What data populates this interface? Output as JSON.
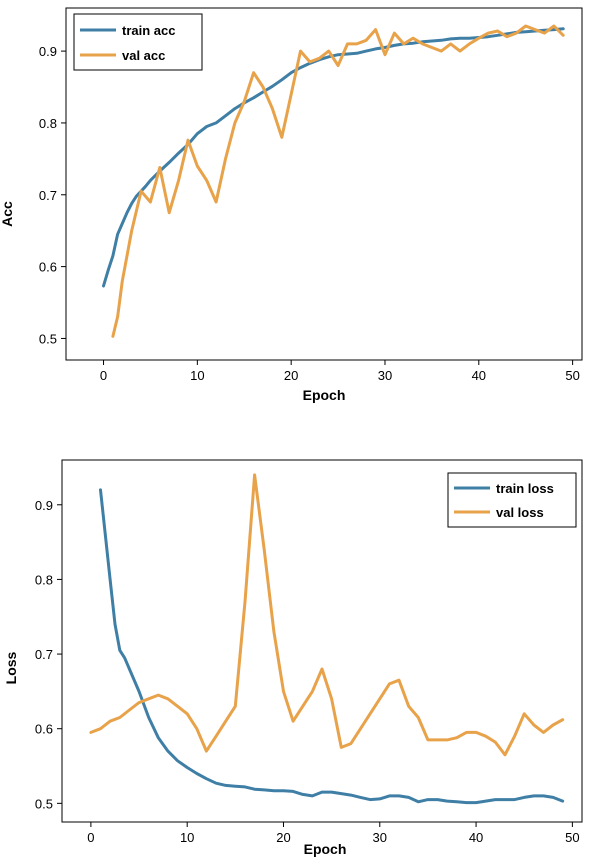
{
  "chart_data": [
    {
      "type": "line",
      "xlabel": "Epoch",
      "ylabel": "Acc",
      "xlim": [
        -4,
        51
      ],
      "ylim": [
        0.47,
        0.96
      ],
      "xticks": [
        0,
        10,
        20,
        30,
        40,
        50
      ],
      "yticks": [
        0.5,
        0.6,
        0.7,
        0.8,
        0.9
      ],
      "grid": false,
      "legend": "top-left",
      "series": [
        {
          "name": "train acc",
          "color": "#3f7fa6",
          "x": [
            0,
            0.5,
            1,
            1.5,
            2,
            2.5,
            3,
            3.5,
            4,
            4.5,
            5,
            6,
            7,
            8,
            9,
            10,
            11,
            12,
            13,
            14,
            15,
            16,
            17,
            18,
            19,
            20,
            21,
            22,
            23,
            24,
            25,
            26,
            27,
            28,
            29,
            30,
            31,
            32,
            33,
            34,
            35,
            36,
            37,
            38,
            39,
            40,
            41,
            42,
            43,
            44,
            45,
            46,
            47,
            48,
            49
          ],
          "y": [
            0.573,
            0.595,
            0.615,
            0.645,
            0.66,
            0.675,
            0.688,
            0.698,
            0.705,
            0.712,
            0.72,
            0.733,
            0.745,
            0.758,
            0.77,
            0.785,
            0.795,
            0.8,
            0.81,
            0.82,
            0.828,
            0.835,
            0.843,
            0.851,
            0.86,
            0.87,
            0.877,
            0.883,
            0.888,
            0.892,
            0.895,
            0.896,
            0.897,
            0.9,
            0.903,
            0.905,
            0.908,
            0.91,
            0.911,
            0.913,
            0.914,
            0.915,
            0.917,
            0.918,
            0.918,
            0.919,
            0.92,
            0.922,
            0.924,
            0.926,
            0.927,
            0.928,
            0.929,
            0.93,
            0.931
          ]
        },
        {
          "name": "val acc",
          "color": "#e8a24a",
          "x": [
            1,
            1.5,
            2,
            3,
            4,
            5,
            6,
            7,
            8,
            9,
            10,
            11,
            12,
            13,
            14,
            15,
            16,
            17,
            18,
            19,
            20,
            21,
            22,
            23,
            24,
            25,
            26,
            27,
            28,
            29,
            30,
            31,
            32,
            33,
            34,
            35,
            36,
            37,
            38,
            39,
            40,
            41,
            42,
            43,
            44,
            45,
            46,
            47,
            48,
            49
          ],
          "y": [
            0.503,
            0.53,
            0.58,
            0.65,
            0.705,
            0.69,
            0.738,
            0.675,
            0.72,
            0.776,
            0.74,
            0.72,
            0.69,
            0.75,
            0.8,
            0.83,
            0.87,
            0.85,
            0.82,
            0.78,
            0.84,
            0.9,
            0.885,
            0.89,
            0.9,
            0.88,
            0.91,
            0.91,
            0.915,
            0.93,
            0.895,
            0.925,
            0.91,
            0.918,
            0.91,
            0.905,
            0.9,
            0.91,
            0.9,
            0.91,
            0.918,
            0.925,
            0.928,
            0.92,
            0.925,
            0.935,
            0.93,
            0.925,
            0.935,
            0.922
          ]
        }
      ]
    },
    {
      "type": "line",
      "xlabel": "Epoch",
      "ylabel": "Loss",
      "xlim": [
        -3,
        51
      ],
      "ylim": [
        0.475,
        0.96
      ],
      "xticks": [
        0,
        10,
        20,
        30,
        40,
        50
      ],
      "yticks": [
        0.5,
        0.6,
        0.7,
        0.8,
        0.9
      ],
      "grid": false,
      "legend": "top-right",
      "series": [
        {
          "name": "train loss",
          "color": "#3f7fa6",
          "x": [
            1,
            1.5,
            2,
            2.5,
            3,
            3.5,
            4,
            5,
            6,
            7,
            8,
            9,
            10,
            11,
            12,
            13,
            14,
            15,
            16,
            17,
            18,
            19,
            20,
            21,
            22,
            23,
            24,
            25,
            26,
            27,
            28,
            29,
            30,
            31,
            32,
            33,
            34,
            35,
            36,
            37,
            38,
            39,
            40,
            41,
            42,
            43,
            44,
            45,
            46,
            47,
            48,
            49
          ],
          "y": [
            0.92,
            0.86,
            0.8,
            0.74,
            0.705,
            0.695,
            0.68,
            0.65,
            0.615,
            0.588,
            0.57,
            0.557,
            0.548,
            0.54,
            0.533,
            0.527,
            0.524,
            0.523,
            0.522,
            0.519,
            0.518,
            0.517,
            0.517,
            0.516,
            0.512,
            0.51,
            0.515,
            0.515,
            0.513,
            0.511,
            0.508,
            0.505,
            0.506,
            0.51,
            0.51,
            0.508,
            0.502,
            0.505,
            0.505,
            0.503,
            0.502,
            0.501,
            0.501,
            0.503,
            0.505,
            0.505,
            0.505,
            0.508,
            0.51,
            0.51,
            0.508,
            0.503
          ]
        },
        {
          "name": "val loss",
          "color": "#e8a24a",
          "x": [
            0,
            1,
            2,
            3,
            4,
            5,
            6,
            7,
            8,
            9,
            10,
            11,
            12,
            13,
            14,
            15,
            16,
            17,
            18,
            19,
            20,
            21,
            22,
            23,
            24,
            25,
            26,
            27,
            28,
            29,
            30,
            31,
            32,
            33,
            34,
            35,
            36,
            37,
            38,
            39,
            40,
            41,
            42,
            43,
            44,
            45,
            46,
            47,
            48,
            49
          ],
          "y": [
            0.595,
            0.6,
            0.61,
            0.615,
            0.625,
            0.635,
            0.64,
            0.645,
            0.64,
            0.63,
            0.62,
            0.6,
            0.57,
            0.59,
            0.61,
            0.63,
            0.77,
            0.94,
            0.84,
            0.73,
            0.65,
            0.61,
            0.63,
            0.65,
            0.68,
            0.64,
            0.575,
            0.58,
            0.6,
            0.62,
            0.64,
            0.66,
            0.665,
            0.63,
            0.615,
            0.585,
            0.585,
            0.585,
            0.588,
            0.595,
            0.595,
            0.59,
            0.582,
            0.565,
            0.59,
            0.62,
            0.605,
            0.595,
            0.605,
            0.612
          ]
        }
      ]
    }
  ]
}
